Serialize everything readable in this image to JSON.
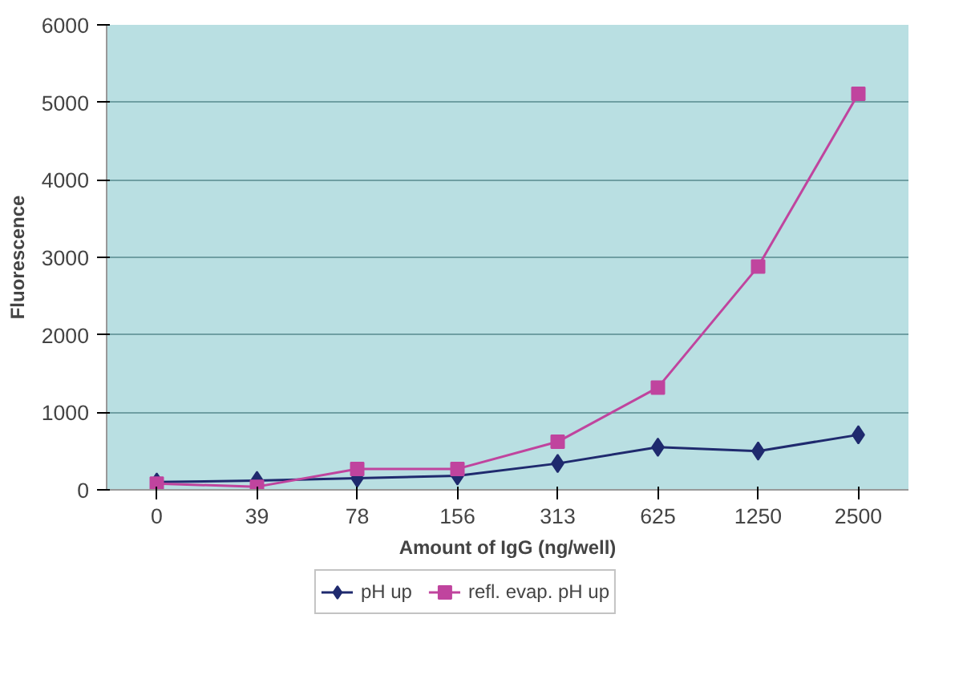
{
  "chart_data": {
    "type": "line",
    "xlabel": "Amount of IgG (ng/well)",
    "ylabel": "Fluorescence",
    "categories": [
      "0",
      "39",
      "78",
      "156",
      "313",
      "625",
      "1250",
      "2500"
    ],
    "series": [
      {
        "name": "pH up",
        "color": "#1f2a6e",
        "marker": "diamond",
        "values": [
          100,
          120,
          150,
          180,
          340,
          550,
          500,
          710
        ]
      },
      {
        "name": "refl. evap. pH up",
        "color": "#c0449e",
        "marker": "square",
        "values": [
          80,
          40,
          270,
          270,
          620,
          1320,
          2880,
          5110
        ]
      }
    ],
    "ylim": [
      0,
      6000
    ],
    "yticks": [
      0,
      1000,
      2000,
      3000,
      4000,
      5000,
      6000
    ],
    "grid": "y",
    "legend": "bottom"
  }
}
